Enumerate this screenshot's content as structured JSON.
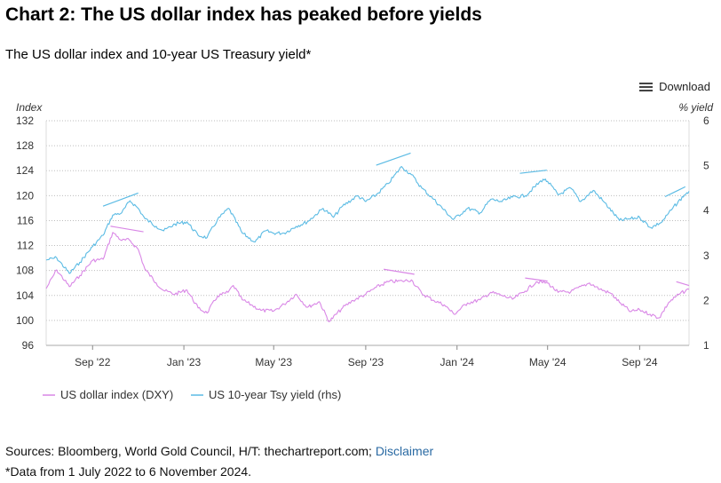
{
  "header": {
    "title": "Chart 2: The US dollar index has peaked before yields",
    "subtitle": "The US dollar index and 10-year US Treasury yield*"
  },
  "toolbar": {
    "download_label": "Download",
    "download_icon": "menu-icon"
  },
  "footer": {
    "sources": "Sources: Bloomberg, World Gold Council, H/T: thechartreport.com;",
    "disclaimer": "Disclaimer",
    "note": "*Data from 1 July 2022 to 6 November 2024."
  },
  "chart_data": {
    "type": "line",
    "left_axis": {
      "label": "Index",
      "min": 96,
      "max": 132,
      "ticks": [
        96,
        100,
        104,
        108,
        112,
        116,
        120,
        124,
        128,
        132
      ]
    },
    "right_axis": {
      "label": "% yield",
      "min": 1,
      "max": 6,
      "ticks": [
        1,
        2,
        3,
        4,
        5,
        6
      ]
    },
    "x_axis": {
      "start": "2022-07-01",
      "end": "2024-11-06",
      "ticks": [
        {
          "date": "2022-09-01",
          "label": "Sep '22"
        },
        {
          "date": "2023-01-01",
          "label": "Jan '23"
        },
        {
          "date": "2023-05-01",
          "label": "May '23"
        },
        {
          "date": "2023-09-01",
          "label": "Sep '23"
        },
        {
          "date": "2024-01-01",
          "label": "Jan '24"
        },
        {
          "date": "2024-05-01",
          "label": "May '24"
        },
        {
          "date": "2024-09-01",
          "label": "Sep '24"
        }
      ]
    },
    "grid": true,
    "legend_position": "bottom-left",
    "series": [
      {
        "name": "US dollar index (DXY)",
        "axis": "left",
        "color": "#d987e6",
        "points": [
          [
            "2022-07-01",
            105.1
          ],
          [
            "2022-07-15",
            108.1
          ],
          [
            "2022-08-01",
            105.4
          ],
          [
            "2022-08-15",
            107.2
          ],
          [
            "2022-09-01",
            109.6
          ],
          [
            "2022-09-15",
            109.8
          ],
          [
            "2022-09-28",
            114.1
          ],
          [
            "2022-10-10",
            112.8
          ],
          [
            "2022-10-20",
            112.9
          ],
          [
            "2022-11-01",
            111.4
          ],
          [
            "2022-11-10",
            108.2
          ],
          [
            "2022-11-25",
            106.0
          ],
          [
            "2022-12-05",
            104.8
          ],
          [
            "2022-12-20",
            104.2
          ],
          [
            "2023-01-05",
            104.9
          ],
          [
            "2023-01-20",
            102.0
          ],
          [
            "2023-02-01",
            101.2
          ],
          [
            "2023-02-15",
            103.9
          ],
          [
            "2023-03-01",
            104.5
          ],
          [
            "2023-03-08",
            105.6
          ],
          [
            "2023-03-20",
            103.3
          ],
          [
            "2023-04-01",
            102.5
          ],
          [
            "2023-04-14",
            101.6
          ],
          [
            "2023-05-01",
            101.5
          ],
          [
            "2023-05-15",
            102.6
          ],
          [
            "2023-05-31",
            104.2
          ],
          [
            "2023-06-15",
            102.1
          ],
          [
            "2023-07-01",
            103.0
          ],
          [
            "2023-07-14",
            99.8
          ],
          [
            "2023-08-01",
            102.0
          ],
          [
            "2023-08-15",
            103.2
          ],
          [
            "2023-09-01",
            104.2
          ],
          [
            "2023-09-15",
            105.3
          ],
          [
            "2023-10-01",
            106.2
          ],
          [
            "2023-10-20",
            106.3
          ],
          [
            "2023-11-01",
            106.5
          ],
          [
            "2023-11-15",
            104.3
          ],
          [
            "2023-12-01",
            103.2
          ],
          [
            "2023-12-15",
            102.5
          ],
          [
            "2023-12-28",
            101.0
          ],
          [
            "2024-01-15",
            102.8
          ],
          [
            "2024-02-01",
            103.3
          ],
          [
            "2024-02-15",
            104.5
          ],
          [
            "2024-03-01",
            104.0
          ],
          [
            "2024-03-15",
            103.4
          ],
          [
            "2024-04-01",
            104.7
          ],
          [
            "2024-04-16",
            106.2
          ],
          [
            "2024-05-01",
            106.0
          ],
          [
            "2024-05-15",
            104.5
          ],
          [
            "2024-06-01",
            104.6
          ],
          [
            "2024-06-26",
            106.0
          ],
          [
            "2024-07-10",
            105.0
          ],
          [
            "2024-07-25",
            104.3
          ],
          [
            "2024-08-05",
            102.9
          ],
          [
            "2024-08-20",
            101.4
          ],
          [
            "2024-09-01",
            101.7
          ],
          [
            "2024-09-15",
            101.0
          ],
          [
            "2024-09-27",
            100.4
          ],
          [
            "2024-10-10",
            102.9
          ],
          [
            "2024-10-25",
            104.3
          ],
          [
            "2024-11-06",
            105.0
          ]
        ]
      },
      {
        "name": "US 10-year Tsy yield (rhs)",
        "axis": "right",
        "color": "#5bbbe4",
        "points": [
          [
            "2022-07-01",
            2.9
          ],
          [
            "2022-07-15",
            2.95
          ],
          [
            "2022-08-01",
            2.6
          ],
          [
            "2022-08-15",
            2.85
          ],
          [
            "2022-09-01",
            3.2
          ],
          [
            "2022-09-15",
            3.45
          ],
          [
            "2022-09-28",
            3.9
          ],
          [
            "2022-10-10",
            3.95
          ],
          [
            "2022-10-21",
            4.22
          ],
          [
            "2022-11-01",
            4.05
          ],
          [
            "2022-11-10",
            3.82
          ],
          [
            "2022-11-25",
            3.65
          ],
          [
            "2022-12-05",
            3.55
          ],
          [
            "2022-12-20",
            3.7
          ],
          [
            "2023-01-05",
            3.75
          ],
          [
            "2023-01-20",
            3.45
          ],
          [
            "2023-02-01",
            3.4
          ],
          [
            "2023-02-15",
            3.8
          ],
          [
            "2023-03-02",
            4.05
          ],
          [
            "2023-03-20",
            3.5
          ],
          [
            "2023-04-06",
            3.3
          ],
          [
            "2023-04-20",
            3.55
          ],
          [
            "2023-05-01",
            3.5
          ],
          [
            "2023-05-15",
            3.5
          ],
          [
            "2023-05-31",
            3.65
          ],
          [
            "2023-06-15",
            3.75
          ],
          [
            "2023-07-06",
            4.05
          ],
          [
            "2023-07-20",
            3.85
          ],
          [
            "2023-08-01",
            4.1
          ],
          [
            "2023-08-21",
            4.33
          ],
          [
            "2023-09-01",
            4.2
          ],
          [
            "2023-09-15",
            4.35
          ],
          [
            "2023-10-01",
            4.6
          ],
          [
            "2023-10-19",
            4.98
          ],
          [
            "2023-11-01",
            4.8
          ],
          [
            "2023-11-15",
            4.5
          ],
          [
            "2023-12-01",
            4.25
          ],
          [
            "2023-12-27",
            3.8
          ],
          [
            "2024-01-15",
            4.05
          ],
          [
            "2024-02-01",
            3.95
          ],
          [
            "2024-02-15",
            4.25
          ],
          [
            "2024-03-01",
            4.2
          ],
          [
            "2024-03-15",
            4.3
          ],
          [
            "2024-04-01",
            4.33
          ],
          [
            "2024-04-25",
            4.7
          ],
          [
            "2024-05-01",
            4.65
          ],
          [
            "2024-05-15",
            4.35
          ],
          [
            "2024-06-01",
            4.5
          ],
          [
            "2024-06-14",
            4.2
          ],
          [
            "2024-07-01",
            4.45
          ],
          [
            "2024-07-15",
            4.2
          ],
          [
            "2024-08-05",
            3.78
          ],
          [
            "2024-08-20",
            3.82
          ],
          [
            "2024-09-01",
            3.85
          ],
          [
            "2024-09-16",
            3.62
          ],
          [
            "2024-10-01",
            3.75
          ],
          [
            "2024-10-15",
            4.05
          ],
          [
            "2024-10-31",
            4.35
          ],
          [
            "2024-11-06",
            4.43
          ]
        ]
      }
    ],
    "annotations": [
      {
        "series": "US 10-year Tsy yield (rhs)",
        "type": "trend-segment",
        "from": [
          "2022-09-15",
          4.1
        ],
        "to": [
          "2022-11-01",
          4.39
        ]
      },
      {
        "series": "US 10-year Tsy yield (rhs)",
        "type": "trend-segment",
        "from": [
          "2023-09-15",
          5.01
        ],
        "to": [
          "2023-10-31",
          5.28
        ]
      },
      {
        "series": "US 10-year Tsy yield (rhs)",
        "type": "trend-segment",
        "from": [
          "2024-03-25",
          4.83
        ],
        "to": [
          "2024-04-30",
          4.9
        ]
      },
      {
        "series": "US 10-year Tsy yield (rhs)",
        "type": "trend-segment",
        "from": [
          "2024-10-05",
          4.31
        ],
        "to": [
          "2024-11-01",
          4.53
        ]
      },
      {
        "series": "US dollar index (DXY)",
        "type": "trend-segment",
        "from": [
          "2022-09-25",
          115.1
        ],
        "to": [
          "2022-11-08",
          114.2
        ]
      },
      {
        "series": "US dollar index (DXY)",
        "type": "trend-segment",
        "from": [
          "2023-09-25",
          108.2
        ],
        "to": [
          "2023-11-05",
          107.4
        ]
      },
      {
        "series": "US dollar index (DXY)",
        "type": "trend-segment",
        "from": [
          "2024-04-01",
          106.8
        ],
        "to": [
          "2024-05-01",
          106.3
        ]
      },
      {
        "series": "US dollar index (DXY)",
        "type": "trend-segment",
        "from": [
          "2024-10-20",
          106.2
        ],
        "to": [
          "2024-11-06",
          105.6
        ]
      }
    ]
  }
}
